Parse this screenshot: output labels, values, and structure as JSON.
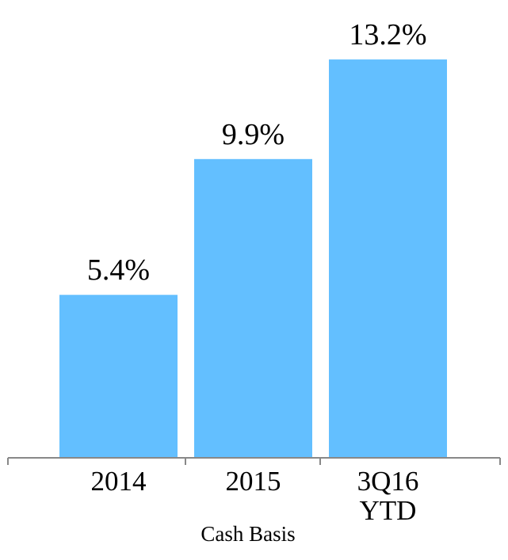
{
  "chart_data": {
    "type": "bar",
    "categories": [
      "2014",
      "2015",
      "3Q16 YTD"
    ],
    "values": [
      5.4,
      9.9,
      13.2
    ],
    "value_labels": [
      "5.4%",
      "9.9%",
      "13.2%"
    ],
    "color": "#63bfff",
    "annotation": "Cash Basis"
  }
}
